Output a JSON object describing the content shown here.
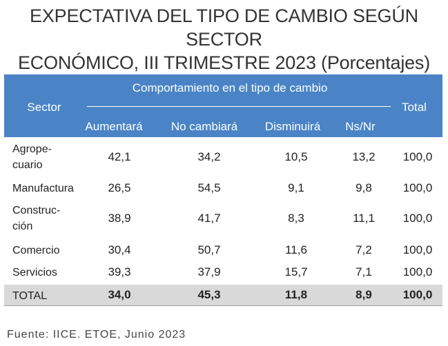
{
  "chart_data": {
    "type": "table",
    "title_lines": [
      "EXPECTATIVA DEL TIPO DE CAMBIO SEGÚN SECTOR",
      "ECONÓMICO, III TRIMESTRE 2023 (Porcentajes)"
    ],
    "header": {
      "sector": "Sector",
      "group": "Comportamiento en el tipo de cambio",
      "columns": [
        "Aumentará",
        "No cambiará",
        "Disminuirá",
        "Ns/Nr"
      ],
      "total": "Total"
    },
    "rows": [
      {
        "sector": [
          "Agrope-",
          "cuario"
        ],
        "values": [
          "42,1",
          "34,2",
          "10,5",
          "13,2",
          "100,0"
        ]
      },
      {
        "sector": [
          "Manufactura"
        ],
        "values": [
          "26,5",
          "54,5",
          "9,1",
          "9,8",
          "100,0"
        ]
      },
      {
        "sector": [
          "Construc-",
          "ción"
        ],
        "values": [
          "38,9",
          "41,7",
          "8,3",
          "11,1",
          "100,0"
        ]
      },
      {
        "sector": [
          "Comercio"
        ],
        "values": [
          "30,4",
          "50,7",
          "11,6",
          "7,2",
          "100,0"
        ]
      },
      {
        "sector": [
          "Servicios"
        ],
        "values": [
          "39,3",
          "37,9",
          "15,7",
          "7,1",
          "100,0"
        ]
      }
    ],
    "total_row": {
      "sector": [
        "TOTAL"
      ],
      "values": [
        "34,0",
        "45,3",
        "11,8",
        "8,9",
        "100,0"
      ]
    },
    "source": "Fuente:  IICE. ETOE, Junio 2023",
    "colors": {
      "header_bg": "#4a84c6",
      "total_row_bg": "#d9d9d9"
    }
  }
}
